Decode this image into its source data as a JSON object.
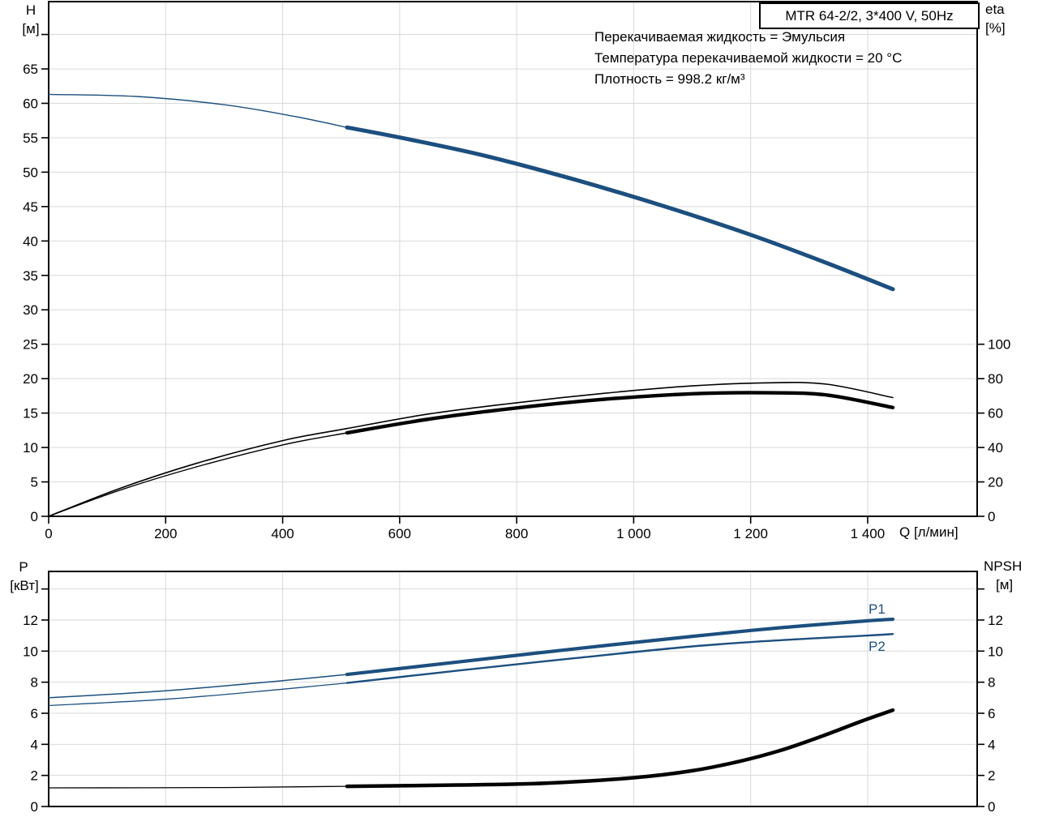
{
  "header": {
    "model": "MTR 64-2/2, 3*400 V, 50Hz"
  },
  "annotations": {
    "line1": "Перекачиваемая жидкость = Эмульсия",
    "line2": "Температура перекачиваемой жидкости = 20 °C",
    "line3": "Плотность = 998.2 кг/м³"
  },
  "axis_labels": {
    "top_left_symbol": "H",
    "top_left_unit": "[м]",
    "top_right_symbol": "eta",
    "top_right_unit": "[%]",
    "x_label": "Q [л/мин]",
    "bottom_left_symbol": "P",
    "bottom_left_unit": "[кВт]",
    "bottom_right_symbol": "NPSH",
    "bottom_right_unit": "[м]"
  },
  "curve_labels": {
    "p1": "P1",
    "p2": "P2"
  },
  "colors": {
    "curve_blue": "#1c4f7f",
    "curve_black": "#000000",
    "grid": "#d9d9d9",
    "axis": "#000000",
    "background": "#ffffff"
  },
  "chart_data": [
    {
      "type": "line",
      "name": "head-efficiency-chart",
      "x": {
        "label": "Q [л/мин]",
        "min": 0,
        "max": 1587,
        "ticks": [
          0,
          200,
          400,
          600,
          800,
          1000,
          1200,
          1400
        ],
        "tick_labels": [
          "0",
          "200",
          "400",
          "600",
          "800",
          "1 000",
          "1 200",
          "1 400"
        ],
        "grid": true
      },
      "y_left": {
        "name": "H",
        "unit": "м",
        "min": 0,
        "max": 74.8,
        "ticks": [
          0,
          5,
          10,
          15,
          20,
          25,
          30,
          35,
          40,
          45,
          50,
          55,
          60,
          65,
          70
        ],
        "labeled_max": 65
      },
      "y_right": {
        "name": "eta",
        "unit": "%",
        "min": 0,
        "ticks": [
          0,
          20,
          40,
          60,
          80,
          100
        ],
        "labeled_max": 100
      },
      "series": [
        {
          "name": "H-curve",
          "axis": "left",
          "color": "blue",
          "split_q": 510,
          "thin_width": 1.4,
          "thick_width": 5,
          "points": [
            [
              0,
              61.3
            ],
            [
              150,
              61.0
            ],
            [
              300,
              59.8
            ],
            [
              420,
              58.1
            ],
            [
              510,
              56.5
            ],
            [
              620,
              54.7
            ],
            [
              750,
              52.3
            ],
            [
              900,
              48.9
            ],
            [
              1050,
              45.1
            ],
            [
              1200,
              40.9
            ],
            [
              1330,
              36.8
            ],
            [
              1443,
              33.0
            ]
          ]
        },
        {
          "name": "eta-max-curve",
          "axis": "right",
          "color": "black",
          "split_q": null,
          "thin_width": 1.6,
          "thick_width": 1.6,
          "points": [
            [
              0,
              0
            ],
            [
              120,
              16
            ],
            [
              250,
              30.5
            ],
            [
              400,
              44
            ],
            [
              510,
              51
            ],
            [
              650,
              59.5
            ],
            [
              800,
              66
            ],
            [
              950,
              71.5
            ],
            [
              1100,
              75.8
            ],
            [
              1230,
              77.6
            ],
            [
              1330,
              76.8
            ],
            [
              1443,
              69
            ]
          ]
        },
        {
          "name": "eta-duty-curve",
          "axis": "right",
          "color": "black",
          "split_q": 510,
          "thin_width": 1.4,
          "thick_width": 4.4,
          "points": [
            [
              0,
              0
            ],
            [
              120,
              15
            ],
            [
              250,
              28.5
            ],
            [
              400,
              41.5
            ],
            [
              510,
              48.5
            ],
            [
              650,
              56.5
            ],
            [
              800,
              63
            ],
            [
              950,
              68
            ],
            [
              1100,
              71.2
            ],
            [
              1230,
              71.8
            ],
            [
              1330,
              70.5
            ],
            [
              1443,
              63.2
            ]
          ]
        }
      ]
    },
    {
      "type": "line",
      "name": "power-npsh-chart",
      "x": {
        "label": "",
        "min": 0,
        "max": 1587,
        "ticks": [
          200,
          400,
          600,
          800,
          1000,
          1200,
          1400
        ],
        "tick_labels": [],
        "grid": true
      },
      "y_left": {
        "name": "P",
        "unit": "кВт",
        "min": 0,
        "max": 15.1,
        "ticks": [
          0,
          2,
          4,
          6,
          8,
          10,
          12,
          14
        ],
        "labeled_max": 12
      },
      "y_right": {
        "name": "NPSH",
        "unit": "м",
        "min": 0,
        "ticks": [
          0,
          2,
          4,
          6,
          8,
          10,
          12,
          14
        ],
        "labeled_max": 12
      },
      "series": [
        {
          "name": "P1-curve",
          "axis": "left",
          "color": "blue",
          "split_q": 510,
          "thin_width": 1.5,
          "thick_width": 4.2,
          "points": [
            [
              0,
              7.0
            ],
            [
              200,
              7.45
            ],
            [
              400,
              8.1
            ],
            [
              510,
              8.5
            ],
            [
              700,
              9.3
            ],
            [
              900,
              10.15
            ],
            [
              1100,
              10.95
            ],
            [
              1250,
              11.5
            ],
            [
              1400,
              11.95
            ],
            [
              1443,
              12.05
            ]
          ]
        },
        {
          "name": "P2-curve",
          "axis": "left",
          "color": "blue",
          "split_q": 510,
          "thin_width": 1.3,
          "thick_width": 2.4,
          "points": [
            [
              0,
              6.5
            ],
            [
              200,
              6.9
            ],
            [
              400,
              7.55
            ],
            [
              510,
              7.95
            ],
            [
              700,
              8.75
            ],
            [
              900,
              9.55
            ],
            [
              1100,
              10.3
            ],
            [
              1250,
              10.7
            ],
            [
              1400,
              11.0
            ],
            [
              1443,
              11.1
            ]
          ]
        },
        {
          "name": "NPSH-curve",
          "axis": "left",
          "color": "black",
          "split_q": 510,
          "thin_width": 1.3,
          "thick_width": 4.5,
          "points": [
            [
              0,
              1.2
            ],
            [
              300,
              1.22
            ],
            [
              510,
              1.3
            ],
            [
              700,
              1.38
            ],
            [
              850,
              1.5
            ],
            [
              1000,
              1.85
            ],
            [
              1100,
              2.3
            ],
            [
              1180,
              2.9
            ],
            [
              1250,
              3.6
            ],
            [
              1320,
              4.5
            ],
            [
              1390,
              5.5
            ],
            [
              1443,
              6.2
            ]
          ]
        }
      ]
    }
  ]
}
